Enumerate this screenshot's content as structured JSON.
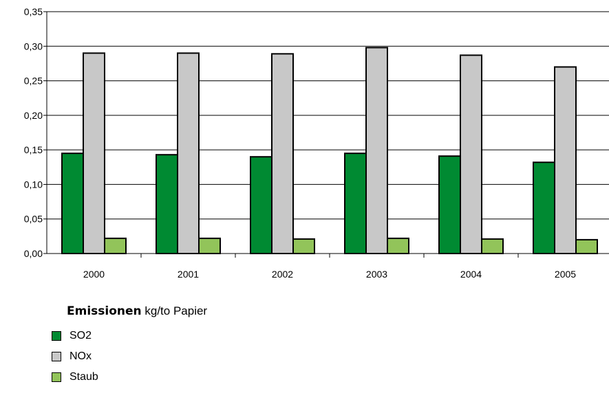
{
  "chart_data": {
    "type": "bar",
    "categories": [
      "2000",
      "2001",
      "2002",
      "2003",
      "2004",
      "2005"
    ],
    "series": [
      {
        "name": "SO2",
        "values": [
          0.145,
          0.143,
          0.14,
          0.145,
          0.141,
          0.132
        ],
        "color": "#008a32"
      },
      {
        "name": "NOx",
        "values": [
          0.29,
          0.29,
          0.289,
          0.298,
          0.287,
          0.27
        ],
        "color": "#c8c8c8"
      },
      {
        "name": "Staub",
        "values": [
          0.022,
          0.022,
          0.021,
          0.022,
          0.021,
          0.02
        ],
        "color": "#92c45a"
      }
    ],
    "ylim": [
      0,
      0.35
    ],
    "yticks": [
      "0,00",
      "0,05",
      "0,10",
      "0,15",
      "0,20",
      "0,25",
      "0,30",
      "0,35"
    ],
    "grid": true,
    "legend_position": "bottom-left"
  },
  "legend": {
    "title_bold": "Emissionen",
    "title_rest": " kg/to Papier"
  }
}
